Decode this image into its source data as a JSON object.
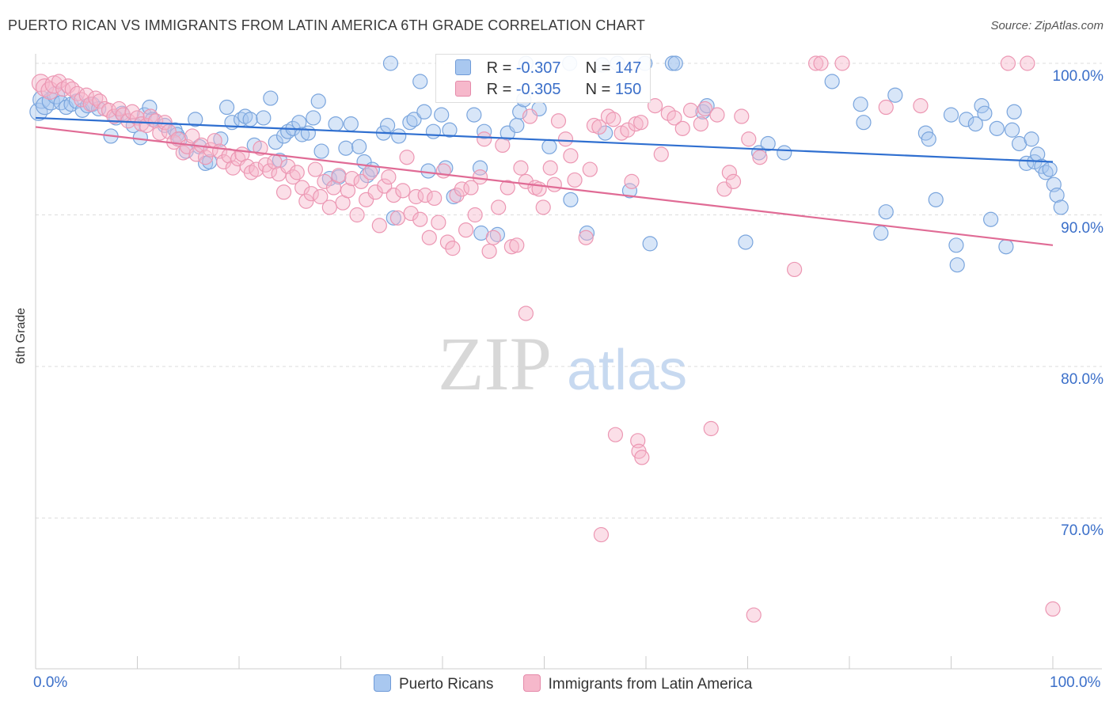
{
  "title": "PUERTO RICAN VS IMMIGRANTS FROM LATIN AMERICA 6TH GRADE CORRELATION CHART",
  "source": "Source: ZipAtlas.com",
  "watermark": {
    "zip": "ZIP",
    "atlas": "atlas"
  },
  "legend_top": {
    "r_label": "R =",
    "n_label": "N =",
    "rows": [
      {
        "r": "-0.307",
        "n": "147"
      },
      {
        "r": "-0.305",
        "n": "150"
      }
    ]
  },
  "chart_data": {
    "type": "scatter",
    "title": "PUERTO RICAN VS IMMIGRANTS FROM LATIN AMERICA 6TH GRADE CORRELATION CHART",
    "xlabel": "",
    "ylabel": "6th Grade",
    "xlim": [
      0,
      100
    ],
    "ylim": [
      60,
      102
    ],
    "x_tick_labels": [
      "0.0%",
      "100.0%"
    ],
    "y_ticks": [
      70,
      80,
      90,
      100
    ],
    "y_tick_labels": [
      "70.0%",
      "80.0%",
      "90.0%",
      "100.0%"
    ],
    "grid": "horizontal dashed",
    "legend": "bottom-center",
    "colors": {
      "blue_fill": "#a9c8f0",
      "blue_line": "#2f6fd0",
      "pink_fill": "#f6b8cb",
      "pink_line": "#e06b95"
    },
    "series": [
      {
        "name": "Puerto Ricans",
        "r": -0.307,
        "n": 147,
        "trend": {
          "x": [
            0,
            100
          ],
          "y": [
            96.4,
            93.5
          ]
        },
        "points": [
          [
            0.3,
            96.8
          ],
          [
            0.6,
            97.6
          ],
          [
            0.9,
            97.2
          ],
          [
            1.5,
            97.5
          ],
          [
            2.0,
            97.9
          ],
          [
            2.5,
            97.4
          ],
          [
            3.0,
            97.1
          ],
          [
            3.5,
            97.3
          ],
          [
            4.0,
            97.5
          ],
          [
            4.6,
            96.9
          ],
          [
            5.1,
            97.2
          ],
          [
            5.6,
            97.3
          ],
          [
            6.2,
            97.0
          ],
          [
            7.4,
            95.2
          ],
          [
            7.9,
            96.4
          ],
          [
            8.5,
            96.7
          ],
          [
            9.6,
            95.9
          ],
          [
            10.3,
            95.1
          ],
          [
            10.7,
            96.6
          ],
          [
            11.2,
            97.1
          ],
          [
            11.5,
            96.3
          ],
          [
            12.7,
            95.9
          ],
          [
            13.7,
            95.6
          ],
          [
            13.9,
            95.3
          ],
          [
            14.2,
            95.0
          ],
          [
            14.8,
            94.2
          ],
          [
            15.7,
            96.3
          ],
          [
            16.1,
            94.5
          ],
          [
            16.7,
            93.4
          ],
          [
            17.1,
            93.5
          ],
          [
            18.2,
            95.0
          ],
          [
            18.8,
            97.1
          ],
          [
            19.3,
            96.1
          ],
          [
            20.2,
            96.3
          ],
          [
            20.6,
            96.5
          ],
          [
            21.1,
            96.3
          ],
          [
            21.5,
            94.6
          ],
          [
            22.4,
            96.4
          ],
          [
            23.1,
            97.7
          ],
          [
            23.6,
            94.8
          ],
          [
            24.0,
            93.6
          ],
          [
            24.4,
            95.2
          ],
          [
            24.8,
            95.5
          ],
          [
            25.3,
            95.7
          ],
          [
            25.9,
            96.1
          ],
          [
            26.2,
            95.3
          ],
          [
            26.8,
            95.4
          ],
          [
            27.3,
            96.4
          ],
          [
            27.8,
            97.5
          ],
          [
            28.1,
            94.2
          ],
          [
            28.9,
            92.4
          ],
          [
            29.5,
            96.0
          ],
          [
            29.8,
            92.5
          ],
          [
            30.5,
            94.4
          ],
          [
            31.0,
            96.0
          ],
          [
            31.8,
            94.5
          ],
          [
            32.3,
            93.5
          ],
          [
            32.6,
            92.6
          ],
          [
            33.1,
            93.0
          ],
          [
            34.2,
            95.4
          ],
          [
            34.6,
            95.9
          ],
          [
            34.9,
            100.0
          ],
          [
            35.2,
            89.8
          ],
          [
            35.7,
            95.2
          ],
          [
            36.8,
            96.1
          ],
          [
            37.2,
            96.3
          ],
          [
            37.8,
            98.8
          ],
          [
            38.2,
            96.8
          ],
          [
            38.6,
            92.9
          ],
          [
            39.1,
            95.5
          ],
          [
            39.9,
            96.6
          ],
          [
            40.3,
            93.1
          ],
          [
            40.7,
            95.6
          ],
          [
            41.1,
            91.2
          ],
          [
            43.1,
            96.6
          ],
          [
            43.8,
            88.8
          ],
          [
            43.7,
            93.1
          ],
          [
            44.1,
            95.5
          ],
          [
            45.4,
            88.7
          ],
          [
            46.4,
            95.4
          ],
          [
            47.3,
            95.9
          ],
          [
            47.6,
            96.8
          ],
          [
            48.0,
            97.6
          ],
          [
            48.2,
            100.0
          ],
          [
            49.5,
            97.0
          ],
          [
            50.5,
            94.5
          ],
          [
            52.5,
            100.0
          ],
          [
            52.6,
            91.0
          ],
          [
            54.2,
            88.8
          ],
          [
            55.7,
            99.9
          ],
          [
            56.0,
            95.4
          ],
          [
            57.2,
            100.0
          ],
          [
            58.4,
            91.6
          ],
          [
            59.9,
            100.0
          ],
          [
            60.4,
            88.1
          ],
          [
            62.6,
            100.0
          ],
          [
            62.9,
            100.0
          ],
          [
            65.6,
            96.8
          ],
          [
            66.0,
            97.2
          ],
          [
            69.8,
            88.2
          ],
          [
            71.1,
            94.1
          ],
          [
            72.0,
            94.7
          ],
          [
            73.6,
            94.1
          ],
          [
            78.3,
            98.8
          ],
          [
            81.1,
            97.3
          ],
          [
            81.4,
            96.1
          ],
          [
            83.1,
            88.8
          ],
          [
            83.6,
            90.2
          ],
          [
            84.5,
            97.9
          ],
          [
            87.5,
            95.4
          ],
          [
            87.8,
            95.0
          ],
          [
            88.5,
            91.0
          ],
          [
            90.0,
            96.6
          ],
          [
            90.5,
            88.0
          ],
          [
            90.6,
            86.7
          ],
          [
            91.5,
            96.3
          ],
          [
            92.4,
            96.0
          ],
          [
            93.0,
            97.2
          ],
          [
            93.3,
            96.7
          ],
          [
            93.9,
            89.7
          ],
          [
            94.5,
            95.7
          ],
          [
            95.4,
            87.9
          ],
          [
            96.0,
            95.6
          ],
          [
            96.2,
            96.8
          ],
          [
            96.7,
            94.7
          ],
          [
            97.4,
            93.4
          ],
          [
            97.9,
            95.0
          ],
          [
            98.2,
            93.5
          ],
          [
            98.5,
            94.0
          ],
          [
            98.9,
            93.2
          ],
          [
            99.3,
            92.8
          ],
          [
            99.7,
            93.0
          ],
          [
            100.1,
            92.0
          ],
          [
            100.4,
            91.3
          ],
          [
            100.8,
            90.5
          ]
        ]
      },
      {
        "name": "Immigrants from Latin America",
        "r": -0.305,
        "n": 150,
        "trend": {
          "x": [
            0,
            100
          ],
          "y": [
            95.8,
            88.0
          ]
        },
        "points": [
          [
            0.5,
            98.7
          ],
          [
            0.9,
            98.4
          ],
          [
            1.4,
            98.2
          ],
          [
            1.8,
            98.6
          ],
          [
            2.3,
            98.8
          ],
          [
            2.7,
            98.3
          ],
          [
            3.2,
            98.5
          ],
          [
            3.6,
            98.3
          ],
          [
            4.1,
            98.0
          ],
          [
            4.5,
            97.6
          ],
          [
            5.0,
            97.9
          ],
          [
            5.4,
            97.3
          ],
          [
            5.9,
            97.7
          ],
          [
            6.3,
            97.5
          ],
          [
            6.8,
            97.0
          ],
          [
            7.2,
            96.9
          ],
          [
            7.7,
            96.5
          ],
          [
            8.2,
            97.0
          ],
          [
            8.6,
            96.6
          ],
          [
            9.1,
            96.2
          ],
          [
            9.5,
            96.8
          ],
          [
            10.0,
            96.4
          ],
          [
            10.4,
            96.0
          ],
          [
            10.9,
            95.9
          ],
          [
            11.3,
            96.5
          ],
          [
            11.8,
            96.2
          ],
          [
            12.2,
            95.4
          ],
          [
            12.7,
            96.1
          ],
          [
            13.1,
            95.5
          ],
          [
            13.6,
            94.8
          ],
          [
            14.0,
            95.0
          ],
          [
            14.5,
            94.1
          ],
          [
            14.9,
            94.5
          ],
          [
            15.4,
            95.2
          ],
          [
            15.8,
            94.0
          ],
          [
            16.3,
            94.6
          ],
          [
            16.7,
            93.8
          ],
          [
            17.2,
            94.3
          ],
          [
            17.6,
            94.9
          ],
          [
            18.1,
            94.2
          ],
          [
            18.5,
            93.5
          ],
          [
            19.0,
            93.9
          ],
          [
            19.4,
            93.1
          ],
          [
            19.9,
            93.7
          ],
          [
            20.3,
            94.0
          ],
          [
            20.8,
            93.2
          ],
          [
            21.2,
            92.8
          ],
          [
            21.7,
            93.0
          ],
          [
            22.1,
            94.4
          ],
          [
            22.6,
            93.3
          ],
          [
            23.0,
            92.9
          ],
          [
            23.5,
            93.5
          ],
          [
            23.9,
            92.7
          ],
          [
            24.4,
            91.5
          ],
          [
            24.8,
            93.2
          ],
          [
            25.3,
            92.5
          ],
          [
            25.7,
            92.8
          ],
          [
            26.2,
            91.8
          ],
          [
            26.6,
            90.9
          ],
          [
            27.1,
            91.4
          ],
          [
            27.5,
            93.0
          ],
          [
            28.0,
            91.2
          ],
          [
            28.4,
            92.2
          ],
          [
            28.9,
            90.5
          ],
          [
            29.3,
            91.8
          ],
          [
            29.8,
            92.6
          ],
          [
            30.2,
            90.8
          ],
          [
            30.7,
            91.6
          ],
          [
            31.1,
            92.4
          ],
          [
            31.6,
            90.0
          ],
          [
            32.0,
            92.2
          ],
          [
            32.5,
            91.0
          ],
          [
            32.9,
            92.8
          ],
          [
            33.4,
            91.5
          ],
          [
            33.8,
            89.3
          ],
          [
            34.3,
            91.9
          ],
          [
            34.7,
            92.5
          ],
          [
            35.2,
            91.3
          ],
          [
            35.6,
            89.8
          ],
          [
            36.1,
            91.6
          ],
          [
            36.5,
            93.8
          ],
          [
            36.9,
            90.1
          ],
          [
            37.4,
            91.2
          ],
          [
            37.8,
            89.7
          ],
          [
            38.3,
            91.3
          ],
          [
            38.7,
            88.5
          ],
          [
            39.2,
            91.1
          ],
          [
            39.6,
            89.5
          ],
          [
            40.1,
            92.9
          ],
          [
            40.5,
            88.2
          ],
          [
            41.0,
            87.8
          ],
          [
            41.4,
            91.3
          ],
          [
            41.9,
            91.7
          ],
          [
            42.3,
            89.0
          ],
          [
            42.8,
            91.8
          ],
          [
            43.2,
            90.0
          ],
          [
            43.7,
            92.5
          ],
          [
            44.1,
            95.0
          ],
          [
            44.6,
            87.6
          ],
          [
            45.0,
            88.5
          ],
          [
            45.5,
            90.5
          ],
          [
            45.9,
            94.6
          ],
          [
            46.4,
            91.8
          ],
          [
            46.8,
            87.9
          ],
          [
            47.3,
            88.0
          ],
          [
            47.7,
            93.1
          ],
          [
            48.2,
            92.2
          ],
          [
            48.6,
            96.5
          ],
          [
            49.1,
            91.8
          ],
          [
            49.5,
            91.7
          ],
          [
            49.9,
            90.5
          ],
          [
            50.6,
            93.1
          ],
          [
            51.0,
            92.0
          ],
          [
            51.4,
            96.2
          ],
          [
            52.1,
            95.0
          ],
          [
            52.6,
            93.9
          ],
          [
            53.0,
            92.3
          ],
          [
            54.1,
            88.5
          ],
          [
            54.5,
            93.0
          ],
          [
            54.9,
            95.9
          ],
          [
            55.4,
            95.8
          ],
          [
            56.3,
            96.5
          ],
          [
            56.8,
            96.3
          ],
          [
            57.6,
            95.4
          ],
          [
            58.2,
            95.6
          ],
          [
            58.6,
            92.2
          ],
          [
            59.0,
            96.0
          ],
          [
            59.5,
            96.1
          ],
          [
            60.9,
            97.2
          ],
          [
            61.5,
            94.0
          ],
          [
            62.2,
            96.7
          ],
          [
            62.8,
            96.4
          ],
          [
            63.6,
            95.7
          ],
          [
            64.4,
            96.9
          ],
          [
            65.4,
            96.0
          ],
          [
            65.8,
            97.0
          ],
          [
            67.0,
            96.6
          ],
          [
            67.7,
            91.7
          ],
          [
            68.2,
            92.8
          ],
          [
            68.6,
            92.2
          ],
          [
            69.4,
            96.5
          ],
          [
            70.1,
            95.0
          ],
          [
            71.2,
            93.8
          ],
          [
            74.6,
            86.4
          ],
          [
            76.7,
            100.0
          ],
          [
            77.2,
            100.0
          ],
          [
            79.3,
            100.0
          ],
          [
            83.6,
            97.1
          ],
          [
            87.0,
            97.2
          ],
          [
            97.5,
            100.0
          ],
          [
            95.6,
            100.0
          ],
          [
            48.2,
            83.5
          ],
          [
            57.0,
            75.5
          ],
          [
            59.2,
            75.1
          ],
          [
            59.3,
            74.4
          ],
          [
            59.6,
            74.0
          ],
          [
            55.6,
            68.9
          ],
          [
            66.4,
            75.9
          ],
          [
            70.6,
            63.6
          ],
          [
            100.0,
            64.0
          ]
        ]
      }
    ]
  }
}
